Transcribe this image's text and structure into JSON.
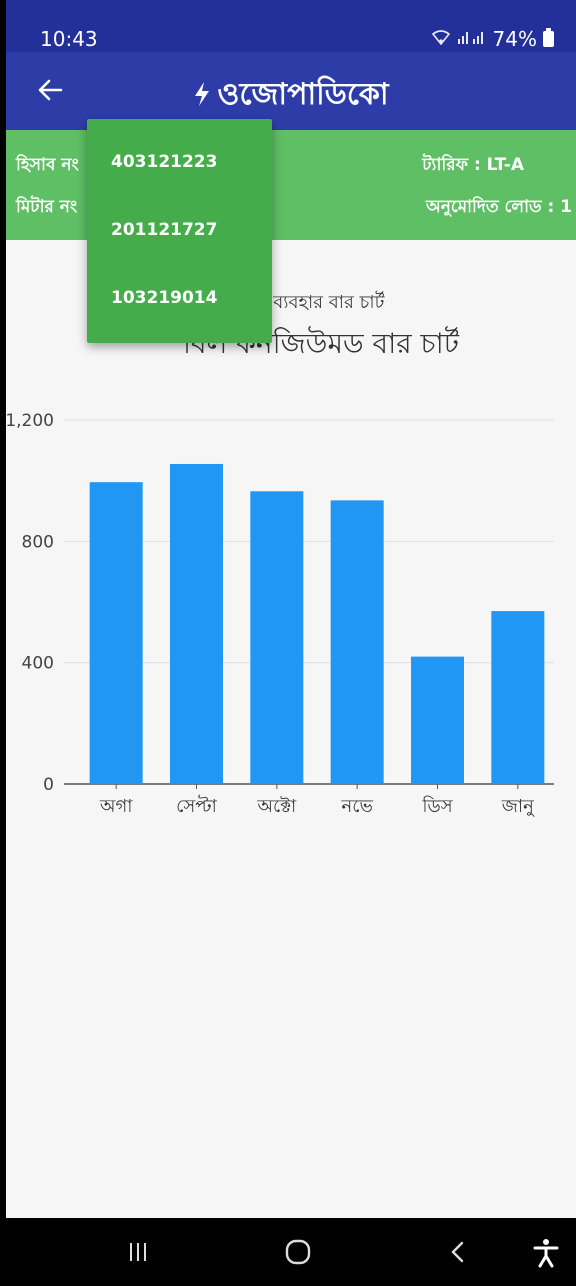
{
  "status_bar": {
    "time": "10:43",
    "battery": "74%"
  },
  "app_bar": {
    "back_icon": "arrow-left-icon",
    "title": "ওজোপাডিকো"
  },
  "info": {
    "account_label": "হিসাব নং",
    "meter_label": "মিটার নং",
    "tariff_text": "ট্যারিফ  : LT-A",
    "approved_load_text": "অনুমোদিত লোড  : 1"
  },
  "dropdown": {
    "items": [
      "403121223",
      "201121727",
      "103219014"
    ]
  },
  "chart_subtitle": "র ব্যবহার বার চার্ট",
  "chart_title": "বিল কনজিউমড বার চার্ট",
  "chart_data": {
    "type": "bar",
    "categories": [
      "অগা",
      "সেপ্টা",
      "অক্টো",
      "নভে",
      "ডিস",
      "জানু"
    ],
    "values": [
      995,
      1055,
      965,
      935,
      420,
      570
    ],
    "ylim": [
      0,
      1200
    ],
    "yticks": [
      0,
      400,
      800,
      1200
    ],
    "ytick_labels": [
      "0",
      "400",
      "800",
      "1,200"
    ],
    "grid": true,
    "bar_color": "#2196f3"
  },
  "nav_bar": {
    "recent_icon": "recent-apps-icon",
    "home_icon": "home-icon",
    "back_icon": "back-icon",
    "accessibility_icon": "accessibility-icon"
  },
  "colors": {
    "app_bar": "#2e3ca8",
    "status_bar": "#24309a",
    "info_bar": "#5fbf64",
    "dropdown": "#45ac4b"
  }
}
